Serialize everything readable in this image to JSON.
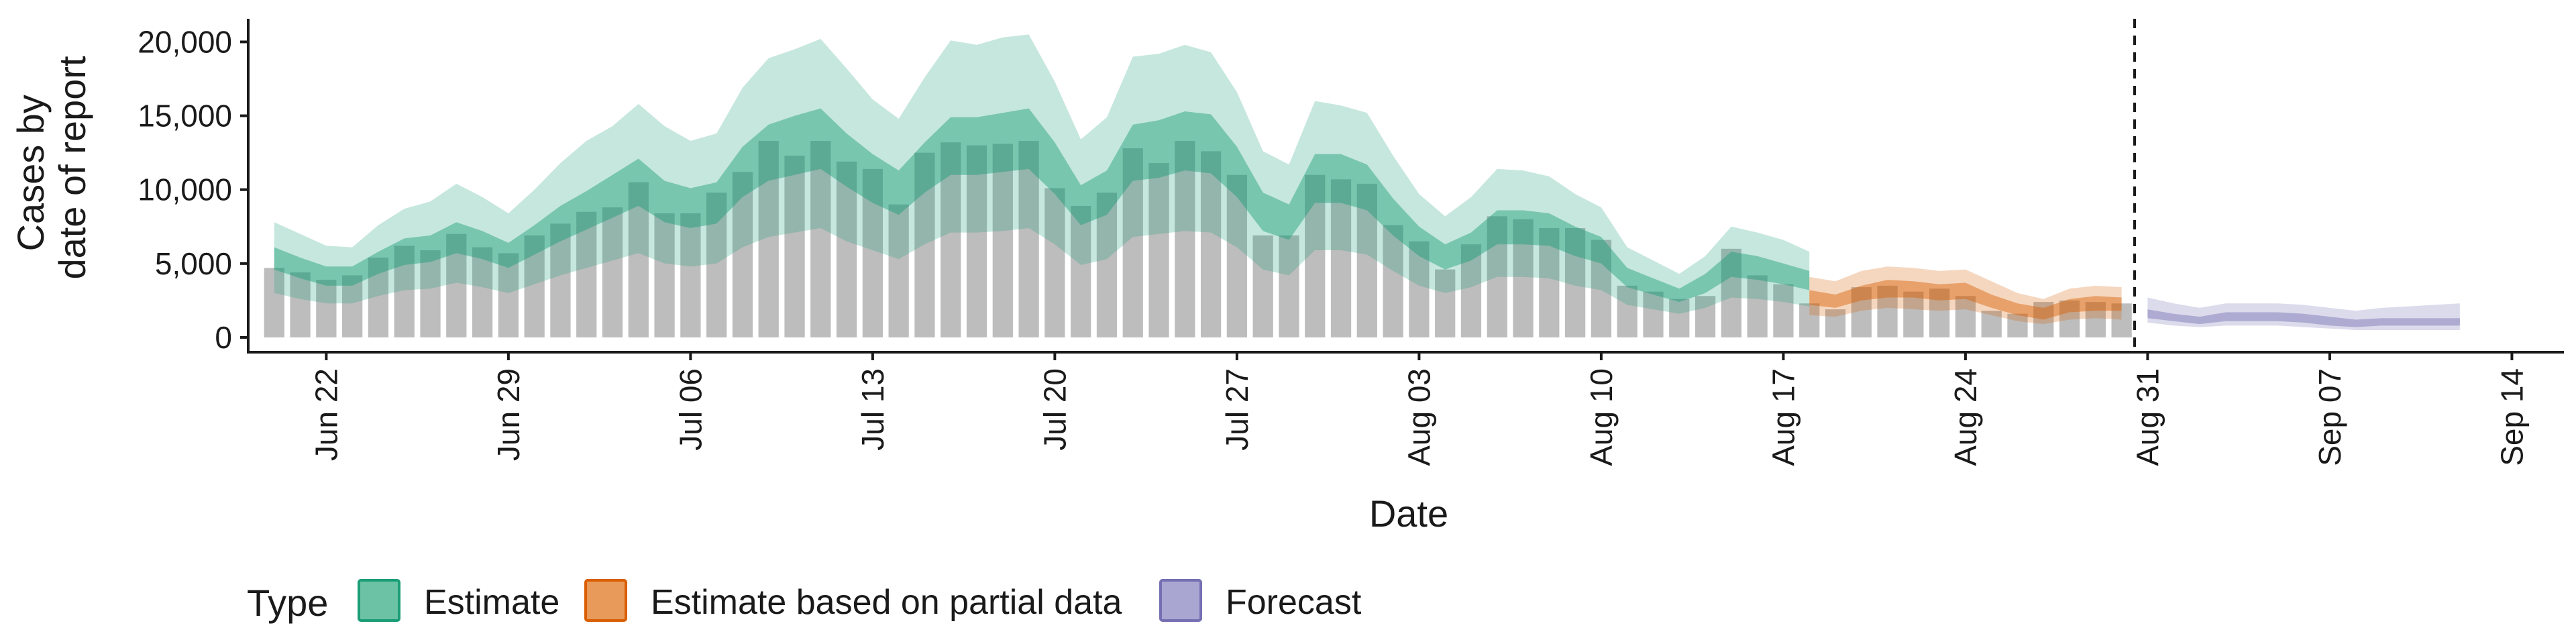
{
  "chart_data": {
    "type": "bar",
    "xlabel": "Date",
    "ylabel_lines": [
      "Cases by",
      "date of report"
    ],
    "ylim": [
      -1000,
      21700
    ],
    "yticks": [
      0,
      5000,
      10000,
      15000,
      20000
    ],
    "ytick_labels": [
      "0",
      "5,000",
      "10,000",
      "15,000",
      "20,000"
    ],
    "x_start": "2020-06-19",
    "x_end": "2020-09-16",
    "xticks": [
      {
        "date": "2020-06-22",
        "label": "Jun 22"
      },
      {
        "date": "2020-06-29",
        "label": "Jun 29"
      },
      {
        "date": "2020-07-06",
        "label": "Jul 06"
      },
      {
        "date": "2020-07-13",
        "label": "Jul 13"
      },
      {
        "date": "2020-07-20",
        "label": "Jul 20"
      },
      {
        "date": "2020-07-27",
        "label": "Jul 27"
      },
      {
        "date": "2020-08-03",
        "label": "Aug 03"
      },
      {
        "date": "2020-08-10",
        "label": "Aug 10"
      },
      {
        "date": "2020-08-17",
        "label": "Aug 17"
      },
      {
        "date": "2020-08-24",
        "label": "Aug 24"
      },
      {
        "date": "2020-08-31",
        "label": "Aug 31"
      },
      {
        "date": "2020-09-07",
        "label": "Sep 07"
      },
      {
        "date": "2020-09-14",
        "label": "Sep 14"
      }
    ],
    "vline_date": "2020-08-30",
    "bars": {
      "start_date": "2020-06-20",
      "color": "#bdbdbd",
      "values": [
        4700,
        4400,
        3900,
        4200,
        5400,
        6200,
        5900,
        7000,
        6100,
        5700,
        6900,
        7700,
        8500,
        8800,
        10500,
        8400,
        8400,
        9800,
        11200,
        13300,
        12300,
        13300,
        11900,
        11400,
        9000,
        12500,
        13200,
        13000,
        13100,
        13300,
        10100,
        8900,
        9800,
        12800,
        11800,
        13300,
        12600,
        11000,
        6900,
        6900,
        11000,
        10700,
        10400,
        7600,
        6500,
        4600,
        6300,
        8200,
        8000,
        7400,
        7400,
        6600,
        3500,
        3100,
        2600,
        2800,
        6000,
        4200,
        3600,
        2300,
        1900,
        3400,
        3500,
        3100,
        3300,
        2800,
        1800,
        1600,
        2400,
        2500,
        2400,
        2300
      ]
    },
    "series": [
      {
        "name": "Estimate",
        "color": "#1b9e77",
        "start_date": "2020-06-20",
        "median": [
          5400,
          4700,
          4200,
          4200,
          5100,
          5800,
          6000,
          6800,
          6300,
          5600,
          6600,
          7700,
          8600,
          9500,
          10500,
          9200,
          8800,
          9100,
          11200,
          12500,
          13000,
          13500,
          12000,
          10800,
          9800,
          11500,
          13000,
          13000,
          13200,
          13500,
          11500,
          9000,
          9800,
          12500,
          12800,
          13300,
          13100,
          11200,
          8500,
          7800,
          10800,
          10800,
          10200,
          8200,
          6500,
          5500,
          6200,
          7500,
          7500,
          7300,
          6500,
          5900,
          4100,
          3500,
          2900,
          3700,
          5000,
          4800,
          4400,
          3900
        ],
        "inner_low": [
          4600,
          4000,
          3500,
          3500,
          4300,
          4900,
          5100,
          5700,
          5300,
          4700,
          5600,
          6500,
          7300,
          8100,
          8900,
          7800,
          7400,
          7700,
          9500,
          10600,
          11000,
          11400,
          10200,
          9100,
          8300,
          9800,
          11000,
          11000,
          11200,
          11400,
          9700,
          7600,
          8300,
          10600,
          10800,
          11300,
          11100,
          9500,
          7200,
          6600,
          9100,
          9100,
          8600,
          6900,
          5500,
          4600,
          5200,
          6300,
          6300,
          6200,
          5500,
          5000,
          3400,
          2900,
          2400,
          3000,
          4100,
          3900,
          3600,
          3200
        ],
        "inner_high": [
          6100,
          5400,
          4800,
          4800,
          5800,
          6700,
          6900,
          7800,
          7200,
          6400,
          7600,
          8900,
          9900,
          11000,
          12100,
          10600,
          10100,
          10500,
          12900,
          14400,
          15000,
          15500,
          13800,
          12400,
          11300,
          13200,
          14900,
          14900,
          15200,
          15500,
          13200,
          10300,
          11300,
          14400,
          14700,
          15300,
          15100,
          12900,
          9800,
          9000,
          12400,
          12400,
          11700,
          9400,
          7500,
          6300,
          7100,
          8600,
          8600,
          8400,
          7500,
          6800,
          4700,
          4000,
          3300,
          4300,
          5800,
          5500,
          5000,
          4500
        ],
        "outer_low": [
          3000,
          2600,
          2300,
          2300,
          2800,
          3200,
          3300,
          3700,
          3400,
          3000,
          3600,
          4200,
          4700,
          5200,
          5700,
          5000,
          4800,
          5000,
          6100,
          6800,
          7100,
          7400,
          6500,
          5900,
          5300,
          6300,
          7100,
          7100,
          7200,
          7400,
          6300,
          4900,
          5300,
          6800,
          7000,
          7200,
          7100,
          6100,
          4600,
          4200,
          5900,
          5900,
          5600,
          4500,
          3500,
          3000,
          3400,
          4100,
          4100,
          4000,
          3500,
          3200,
          2200,
          1900,
          1600,
          2000,
          2700,
          2600,
          2400,
          2100
        ],
        "outer_high": [
          7800,
          7000,
          6200,
          6100,
          7600,
          8700,
          9200,
          10400,
          9500,
          8400,
          10000,
          11800,
          13300,
          14300,
          15800,
          14300,
          13300,
          13800,
          16900,
          18900,
          19500,
          20200,
          18200,
          16100,
          14800,
          17600,
          20100,
          19800,
          20300,
          20500,
          17300,
          13400,
          14900,
          19000,
          19200,
          19800,
          19300,
          16600,
          12600,
          11700,
          16000,
          15700,
          15200,
          12300,
          9700,
          8200,
          9500,
          11400,
          11300,
          10900,
          9700,
          8800,
          6100,
          5200,
          4300,
          5500,
          7500,
          7100,
          6600,
          5800
        ]
      },
      {
        "name": "Estimate based on partial data",
        "color": "#d95f02",
        "start_date": "2020-08-18",
        "median": [
          2700,
          2400,
          3000,
          3300,
          3200,
          3100,
          3200,
          2500,
          1900,
          1600,
          2100,
          2300,
          2200
        ],
        "inner_low": [
          2200,
          2000,
          2500,
          2700,
          2700,
          2500,
          2600,
          2000,
          1500,
          1200,
          1700,
          1800,
          1800
        ],
        "inner_high": [
          3200,
          2900,
          3500,
          3900,
          3800,
          3600,
          3700,
          2900,
          2300,
          2000,
          2600,
          2800,
          2700
        ],
        "outer_low": [
          1500,
          1400,
          1800,
          2000,
          1900,
          1800,
          1900,
          1500,
          1100,
          900,
          1200,
          1300,
          1200
        ],
        "outer_high": [
          4100,
          3800,
          4500,
          4800,
          4700,
          4500,
          4600,
          3800,
          3000,
          2600,
          3300,
          3500,
          3400
        ]
      },
      {
        "name": "Forecast",
        "color": "#7570b3",
        "start_date": "2020-08-31",
        "median": [
          1600,
          1300,
          1100,
          1400,
          1400,
          1400,
          1300,
          1100,
          900,
          1000,
          1000,
          1000,
          1000
        ],
        "inner_low": [
          1300,
          1100,
          900,
          1100,
          1100,
          1100,
          1000,
          800,
          700,
          800,
          800,
          800,
          800
        ],
        "inner_high": [
          1900,
          1600,
          1400,
          1700,
          1700,
          1700,
          1600,
          1400,
          1200,
          1300,
          1300,
          1300,
          1300
        ],
        "outer_low": [
          1000,
          800,
          700,
          800,
          800,
          800,
          700,
          600,
          500,
          500,
          500,
          500,
          500
        ],
        "outer_high": [
          2700,
          2300,
          2000,
          2300,
          2300,
          2300,
          2200,
          2000,
          1800,
          2000,
          2100,
          2200,
          2300
        ]
      }
    ],
    "legend": {
      "title": "Type",
      "position": "bottom-left",
      "items": [
        {
          "label": "Estimate",
          "fill": "#6cc2a4",
          "stroke": "#1b9e77"
        },
        {
          "label": "Estimate based on partial data",
          "fill": "#e89a5a",
          "stroke": "#d95f02"
        },
        {
          "label": "Forecast",
          "fill": "#aaa6d2",
          "stroke": "#7570b3"
        }
      ]
    }
  }
}
